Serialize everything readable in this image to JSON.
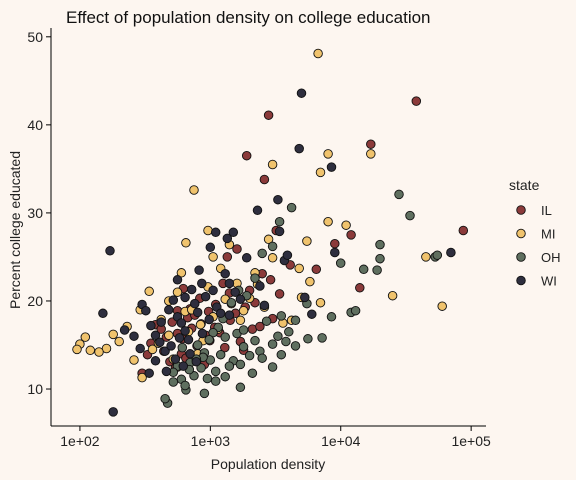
{
  "chart_data": {
    "type": "scatter",
    "title": "Effect of population density on college education",
    "xlabel": "Population density",
    "ylabel": "Percent college educated",
    "x_scale": "log10",
    "xlim": [
      60,
      130000
    ],
    "ylim": [
      5.8,
      51
    ],
    "x_ticks": [
      100,
      1000,
      10000,
      100000
    ],
    "x_tick_labels": [
      "1e+02",
      "1e+03",
      "1e+04",
      "1e+05"
    ],
    "y_ticks": [
      10,
      20,
      30,
      40,
      50
    ],
    "y_tick_labels": [
      "10",
      "20",
      "30",
      "40",
      "50"
    ],
    "grid": false,
    "legend": {
      "title": "state",
      "placement": "right"
    },
    "series": [
      {
        "name": "IL",
        "color": "#8b3a3a",
        "points": [
          [
            1900,
            36.5
          ],
          [
            2800,
            41.1
          ],
          [
            17000,
            37.8
          ],
          [
            38000,
            42.7
          ],
          [
            87000,
            28.0
          ],
          [
            1350,
            25.0
          ],
          [
            2600,
            33.8
          ],
          [
            3200,
            28.0
          ],
          [
            9000,
            26.5
          ],
          [
            12000,
            27.5
          ],
          [
            380,
            17.3
          ],
          [
            420,
            16.8
          ],
          [
            460,
            15.9
          ],
          [
            510,
            17.6
          ],
          [
            560,
            16.3
          ],
          [
            610,
            15.7
          ],
          [
            670,
            18.1
          ],
          [
            720,
            16.9
          ],
          [
            790,
            14.9
          ],
          [
            850,
            17.4
          ],
          [
            920,
            16.1
          ],
          [
            990,
            15.5
          ],
          [
            1080,
            17.0
          ],
          [
            1180,
            16.4
          ],
          [
            1290,
            14.7
          ],
          [
            1420,
            17.8
          ],
          [
            1560,
            18.6
          ],
          [
            1700,
            15.4
          ],
          [
            1850,
            19.3
          ],
          [
            2000,
            21.2
          ],
          [
            2200,
            19.8
          ],
          [
            2500,
            23.1
          ],
          [
            2900,
            22.4
          ],
          [
            3400,
            20.8
          ],
          [
            4100,
            24.1
          ],
          [
            330,
            13.9
          ],
          [
            300,
            11.8
          ],
          [
            350,
            15.2
          ],
          [
            440,
            14.3
          ],
          [
            490,
            13.1
          ],
          [
            540,
            12.4
          ],
          [
            600,
            14.0
          ],
          [
            650,
            13.5
          ],
          [
            700,
            19.1
          ],
          [
            760,
            18.4
          ],
          [
            830,
            20.3
          ],
          [
            900,
            12.8
          ],
          [
            970,
            18.8
          ],
          [
            1100,
            19.6
          ],
          [
            1250,
            22.0
          ],
          [
            1400,
            20.9
          ],
          [
            1600,
            25.9
          ],
          [
            1800,
            14.4
          ],
          [
            2100,
            16.8
          ],
          [
            2400,
            17.1
          ],
          [
            3000,
            18.0
          ],
          [
            6500,
            23.6
          ],
          [
            14000,
            21.5
          ],
          [
            560,
            18.9
          ],
          [
            620,
            21.4
          ]
        ]
      },
      {
        "name": "MI",
        "color": "#f0c36d",
        "points": [
          [
            6700,
            48.1
          ],
          [
            3000,
            35.5
          ],
          [
            8000,
            36.7
          ],
          [
            17000,
            36.7
          ],
          [
            7000,
            34.6
          ],
          [
            750,
            32.6
          ],
          [
            60000,
            19.4
          ],
          [
            45000,
            25.0
          ],
          [
            25000,
            20.6
          ],
          [
            8000,
            29.0
          ],
          [
            11000,
            28.6
          ],
          [
            5500,
            26.8
          ],
          [
            2200,
            23.2
          ],
          [
            1400,
            26.4
          ],
          [
            1050,
            25.0
          ],
          [
            650,
            26.6
          ],
          [
            960,
            28.0
          ],
          [
            600,
            23.2
          ],
          [
            340,
            21.1
          ],
          [
            290,
            19.0
          ],
          [
            230,
            17.1
          ],
          [
            180,
            16.2
          ],
          [
            160,
            14.6
          ],
          [
            140,
            14.2
          ],
          [
            110,
            15.9
          ],
          [
            100,
            15.1
          ],
          [
            95,
            14.5
          ],
          [
            120,
            14.4
          ],
          [
            200,
            15.4
          ],
          [
            260,
            13.3
          ],
          [
            300,
            11.3
          ],
          [
            360,
            14.5
          ],
          [
            420,
            17.9
          ],
          [
            480,
            20.0
          ],
          [
            560,
            21.0
          ],
          [
            640,
            18.8
          ],
          [
            720,
            19.0
          ],
          [
            800,
            14.0
          ],
          [
            880,
            15.5
          ],
          [
            960,
            21.6
          ],
          [
            1050,
            18.2
          ],
          [
            1150,
            16.8
          ],
          [
            1300,
            20.2
          ],
          [
            1450,
            19.7
          ],
          [
            1600,
            22.0
          ],
          [
            1800,
            18.9
          ],
          [
            2000,
            20.3
          ],
          [
            2300,
            21.9
          ],
          [
            2600,
            19.3
          ],
          [
            3000,
            24.9
          ],
          [
            3600,
            17.5
          ],
          [
            4200,
            17.8
          ],
          [
            5000,
            20.4
          ],
          [
            5800,
            22.2
          ],
          [
            7000,
            19.8
          ],
          [
            400,
            15.2
          ],
          [
            520,
            13.4
          ],
          [
            680,
            16.5
          ],
          [
            840,
            17.3
          ],
          [
            1200,
            23.7
          ],
          [
            2800,
            27.0
          ],
          [
            4800,
            23.7
          ],
          [
            560,
            12.5
          ],
          [
            480,
            16.1
          ],
          [
            1700,
            17.8
          ]
        ]
      },
      {
        "name": "OH",
        "color": "#5f6f5f",
        "points": [
          [
            28000,
            32.1
          ],
          [
            34000,
            29.7
          ],
          [
            20000,
            26.4
          ],
          [
            20000,
            24.8
          ],
          [
            15000,
            23.6
          ],
          [
            53000,
            25.0
          ],
          [
            55000,
            25.2
          ],
          [
            19000,
            23.5
          ],
          [
            10000,
            24.3
          ],
          [
            12000,
            18.7
          ],
          [
            8500,
            18.2
          ],
          [
            5500,
            19.7
          ],
          [
            4500,
            17.8
          ],
          [
            4000,
            16.5
          ],
          [
            3500,
            18.3
          ],
          [
            3300,
            16.0
          ],
          [
            3000,
            15.1
          ],
          [
            2700,
            17.7
          ],
          [
            2400,
            14.3
          ],
          [
            2200,
            15.5
          ],
          [
            2000,
            13.8
          ],
          [
            1800,
            14.8
          ],
          [
            1600,
            16.3
          ],
          [
            1500,
            13.2
          ],
          [
            1400,
            12.6
          ],
          [
            1300,
            15.9
          ],
          [
            1200,
            13.9
          ],
          [
            1100,
            12.0
          ],
          [
            1000,
            13.3
          ],
          [
            950,
            11.2
          ],
          [
            900,
            14.1
          ],
          [
            850,
            12.4
          ],
          [
            800,
            15.0
          ],
          [
            750,
            11.5
          ],
          [
            700,
            13.0
          ],
          [
            650,
            9.9
          ],
          [
            600,
            11.1
          ],
          [
            560,
            12.6
          ],
          [
            520,
            11.9
          ],
          [
            470,
            8.4
          ],
          [
            450,
            8.9
          ],
          [
            520,
            10.8
          ],
          [
            640,
            10.4
          ],
          [
            900,
            9.5
          ],
          [
            1100,
            10.9
          ],
          [
            1300,
            11.4
          ],
          [
            1700,
            12.8
          ],
          [
            2100,
            11.8
          ],
          [
            2500,
            13.5
          ],
          [
            3000,
            12.5
          ],
          [
            3500,
            13.9
          ],
          [
            3800,
            15.4
          ],
          [
            4500,
            14.9
          ],
          [
            5600,
            15.7
          ],
          [
            7200,
            15.8
          ],
          [
            13000,
            18.9
          ],
          [
            3400,
            29.0
          ],
          [
            4200,
            30.6
          ],
          [
            3000,
            26.2
          ],
          [
            2500,
            25.4
          ],
          [
            2200,
            22.6
          ],
          [
            1900,
            20.6
          ],
          [
            1650,
            21.2
          ],
          [
            1450,
            19.8
          ],
          [
            1250,
            18.0
          ],
          [
            1150,
            17.0
          ],
          [
            1050,
            16.4
          ],
          [
            980,
            15.6
          ],
          [
            880,
            13.6
          ],
          [
            780,
            13.4
          ],
          [
            690,
            12.2
          ],
          [
            610,
            14.7
          ],
          [
            1800,
            16.7
          ],
          [
            1700,
            10.2
          ]
        ]
      },
      {
        "name": "WI",
        "color": "#2e2e3e",
        "points": [
          [
            5000,
            43.6
          ],
          [
            4800,
            37.3
          ],
          [
            8500,
            35.2
          ],
          [
            3300,
            31.5
          ],
          [
            3400,
            27.9
          ],
          [
            2300,
            30.3
          ],
          [
            1500,
            27.8
          ],
          [
            1350,
            27.1
          ],
          [
            9000,
            25.5
          ],
          [
            70000,
            25.5
          ],
          [
            170,
            25.7
          ],
          [
            2400,
            21.7
          ],
          [
            3700,
            24.6
          ],
          [
            5300,
            20.4
          ],
          [
            6000,
            18.5
          ],
          [
            180,
            7.4
          ],
          [
            150,
            18.6
          ],
          [
            220,
            16.7
          ],
          [
            260,
            16.0
          ],
          [
            300,
            19.6
          ],
          [
            320,
            18.9
          ],
          [
            350,
            17.2
          ],
          [
            380,
            16.1
          ],
          [
            410,
            15.3
          ],
          [
            450,
            14.3
          ],
          [
            480,
            19.0
          ],
          [
            520,
            20.1
          ],
          [
            560,
            18.2
          ],
          [
            600,
            17.5
          ],
          [
            640,
            16.6
          ],
          [
            680,
            15.6
          ],
          [
            720,
            21.3
          ],
          [
            760,
            19.7
          ],
          [
            800,
            18.7
          ],
          [
            860,
            22.0
          ],
          [
            920,
            20.5
          ],
          [
            980,
            17.9
          ],
          [
            1050,
            21.2
          ],
          [
            1120,
            19.3
          ],
          [
            1200,
            18.6
          ],
          [
            1300,
            23.1
          ],
          [
            1400,
            22.0
          ],
          [
            1550,
            21.0
          ],
          [
            1700,
            20.2
          ],
          [
            1900,
            24.9
          ],
          [
            700,
            14.0
          ],
          [
            620,
            12.6
          ],
          [
            580,
            15.8
          ],
          [
            540,
            13.4
          ],
          [
            500,
            14.9
          ],
          [
            460,
            12.0
          ],
          [
            420,
            17.6
          ],
          [
            380,
            13.2
          ],
          [
            340,
            11.8
          ],
          [
            290,
            14.6
          ],
          [
            820,
            23.5
          ],
          [
            1000,
            26.1
          ],
          [
            1100,
            27.8
          ],
          [
            870,
            16.3
          ],
          [
            1400,
            18.4
          ],
          [
            2600,
            19.5
          ],
          [
            3900,
            25.2
          ],
          [
            640,
            20.4
          ],
          [
            560,
            22.4
          ],
          [
            780,
            13.1
          ]
        ]
      }
    ]
  }
}
